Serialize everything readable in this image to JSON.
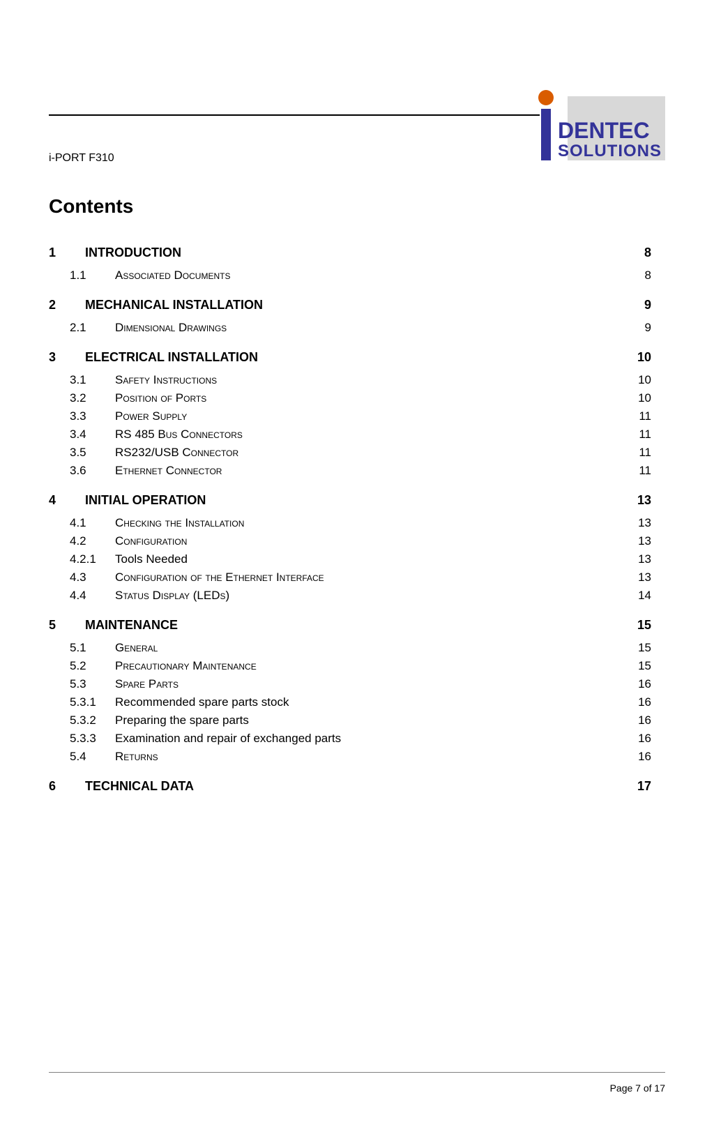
{
  "header": {
    "doc_id": "i-PORT F310",
    "logo": {
      "text_row1": "DENTEC",
      "text_row2": "SOLUTIONS",
      "text_color": "#333399",
      "i_dot_color": "#d95c00",
      "bg_color": "#d8d8d8"
    }
  },
  "contents_title": "Contents",
  "toc": [
    {
      "level": 1,
      "num": "1",
      "title": "INTRODUCTION",
      "page": "8"
    },
    {
      "level": 2,
      "num": "1.1",
      "title": "Associated Documents",
      "page": "8",
      "smallcaps": true
    },
    {
      "level": 1,
      "num": "2",
      "title": "MECHANICAL INSTALLATION",
      "page": "9"
    },
    {
      "level": 2,
      "num": "2.1",
      "title": "Dimensional Drawings",
      "page": "9",
      "smallcaps": true
    },
    {
      "level": 1,
      "num": "3",
      "title": "ELECTRICAL INSTALLATION",
      "page": "10"
    },
    {
      "level": 2,
      "num": "3.1",
      "title": "Safety Instructions",
      "page": "10",
      "smallcaps": true
    },
    {
      "level": 2,
      "num": "3.2",
      "title": "Position of Ports",
      "page": "10",
      "smallcaps": true
    },
    {
      "level": 2,
      "num": "3.3",
      "title": "Power Supply",
      "page": "11",
      "smallcaps": true
    },
    {
      "level": 2,
      "num": "3.4",
      "title": "RS 485 Bus Connectors",
      "page": "11",
      "smallcaps": true
    },
    {
      "level": 2,
      "num": "3.5",
      "title": "RS232/USB Connector",
      "page": "11",
      "smallcaps": true
    },
    {
      "level": 2,
      "num": "3.6",
      "title": "Ethernet Connector",
      "page": "11",
      "smallcaps": true
    },
    {
      "level": 1,
      "num": "4",
      "title": "INITIAL OPERATION",
      "page": "13"
    },
    {
      "level": 2,
      "num": "4.1",
      "title": "Checking the Installation",
      "page": "13",
      "smallcaps": true
    },
    {
      "level": 2,
      "num": "4.2",
      "title": "Configuration",
      "page": "13",
      "smallcaps": true
    },
    {
      "level": 2,
      "num": "4.2.1",
      "title": "Tools Needed",
      "page": "13",
      "smallcaps": false
    },
    {
      "level": 2,
      "num": "4.3",
      "title": "Configuration of the Ethernet Interface",
      "page": "13",
      "smallcaps": true
    },
    {
      "level": 2,
      "num": "4.4",
      "title": "Status Display (LEDs)",
      "page": "14",
      "smallcaps": true
    },
    {
      "level": 1,
      "num": "5",
      "title": "MAINTENANCE",
      "page": "15"
    },
    {
      "level": 2,
      "num": "5.1",
      "title": "General",
      "page": "15",
      "smallcaps": true
    },
    {
      "level": 2,
      "num": "5.2",
      "title": "Precautionary Maintenance",
      "page": "15",
      "smallcaps": true
    },
    {
      "level": 2,
      "num": "5.3",
      "title": "Spare Parts",
      "page": "16",
      "smallcaps": true
    },
    {
      "level": 2,
      "num": "5.3.1",
      "title": "Recommended spare parts stock",
      "page": "16",
      "smallcaps": false
    },
    {
      "level": 2,
      "num": "5.3.2",
      "title": "Preparing the spare parts",
      "page": "16",
      "smallcaps": false
    },
    {
      "level": 2,
      "num": "5.3.3",
      "title": "Examination and repair of exchanged parts",
      "page": "16",
      "smallcaps": false
    },
    {
      "level": 2,
      "num": "5.4",
      "title": "Returns",
      "page": "16",
      "smallcaps": true
    },
    {
      "level": 1,
      "num": "6",
      "title": "TECHNICAL DATA",
      "page": "17"
    }
  ],
  "footer": {
    "text": "Page 7 of 17"
  },
  "styles": {
    "body_font_color": "#000000",
    "l1_fontsize": 18,
    "l2_fontsize": 17,
    "header_rule_color": "#000000",
    "footer_rule_color": "#808080"
  }
}
